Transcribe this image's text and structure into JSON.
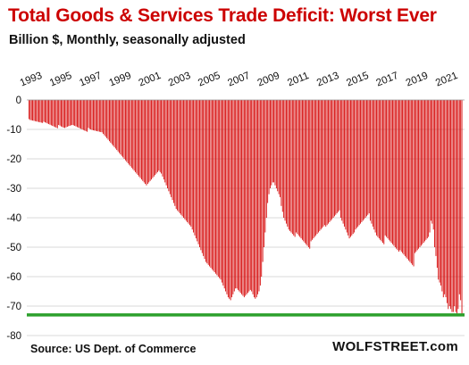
{
  "title": "Total Goods & Services Trade Deficit: Worst Ever",
  "subtitle": "Billion $, Monthly, seasonally adjusted",
  "source": "Source: US Dept. of Commerce",
  "brand": "WOLFSTREET.com",
  "colors": {
    "title": "#cc0000",
    "bars": "#d40000",
    "reference_line": "#2ca02c",
    "grid": "#d9d9d9",
    "text": "#111111"
  },
  "chart_data": {
    "type": "bar",
    "title": "Total Goods & Services Trade Deficit: Worst Ever",
    "subtitle": "Billion $, Monthly, seasonally adjusted",
    "xlabel": "",
    "ylabel": "",
    "x_tick_labels": [
      "1993",
      "1995",
      "1997",
      "1999",
      "2001",
      "2003",
      "2005",
      "2007",
      "2009",
      "2011",
      "2013",
      "2015",
      "2017",
      "2019",
      "2021"
    ],
    "y_tick_labels": [
      "0",
      "-10",
      "-20",
      "-30",
      "-40",
      "-50",
      "-60",
      "-70",
      "-80"
    ],
    "ylim": [
      -80,
      0
    ],
    "grid": "horizontal",
    "frequency": "monthly",
    "series": [
      {
        "annual_values": [
          {
            "year": 1993,
            "months": [
              -6.5,
              -6.8,
              -6.9,
              -7.0,
              -7.1,
              -7.2,
              -7.3,
              -7.4,
              -7.5,
              -7.6,
              -7.7,
              -7.8
            ]
          },
          {
            "year": 1994,
            "months": [
              -7.4,
              -7.6,
              -7.8,
              -8.0,
              -8.2,
              -8.4,
              -8.6,
              -8.8,
              -9.0,
              -9.2,
              -9.4,
              -9.6
            ]
          },
          {
            "year": 1995,
            "months": [
              -8.5,
              -8.7,
              -9.0,
              -9.2,
              -9.4,
              -9.5,
              -9.3,
              -9.1,
              -8.9,
              -8.8,
              -8.6,
              -8.5
            ]
          },
          {
            "year": 1996,
            "months": [
              -8.6,
              -8.8,
              -9.0,
              -9.2,
              -9.4,
              -9.6,
              -9.8,
              -10.0,
              -10.2,
              -10.4,
              -10.6,
              -10.8
            ]
          },
          {
            "year": 1997,
            "months": [
              -9.5,
              -9.8,
              -10.0,
              -10.2,
              -10.3,
              -10.4,
              -10.5,
              -10.6,
              -10.7,
              -10.8,
              -10.9,
              -11.0
            ]
          },
          {
            "year": 1998,
            "months": [
              -11.5,
              -12.0,
              -12.5,
              -13.0,
              -13.5,
              -14.0,
              -14.5,
              -15.0,
              -15.5,
              -16.0,
              -16.5,
              -17.0
            ]
          },
          {
            "year": 1999,
            "months": [
              -17.5,
              -18.0,
              -18.5,
              -19.0,
              -19.5,
              -20.0,
              -20.5,
              -21.0,
              -21.5,
              -22.0,
              -22.5,
              -23.0
            ]
          },
          {
            "year": 2000,
            "months": [
              -23.5,
              -24.0,
              -24.5,
              -25.0,
              -25.5,
              -26.0,
              -26.5,
              -27.0,
              -27.5,
              -28.0,
              -28.5,
              -29.0
            ]
          },
          {
            "year": 2001,
            "months": [
              -28.5,
              -28.0,
              -27.5,
              -27.0,
              -26.5,
              -26.0,
              -25.5,
              -25.0,
              -24.5,
              -24.0,
              -24.5,
              -25.0
            ]
          },
          {
            "year": 2002,
            "months": [
              -26.0,
              -27.0,
              -28.0,
              -29.0,
              -30.0,
              -31.0,
              -32.0,
              -33.0,
              -34.0,
              -35.0,
              -36.0,
              -37.0
            ]
          },
          {
            "year": 2003,
            "months": [
              -37.5,
              -38.0,
              -38.5,
              -39.0,
              -39.5,
              -40.0,
              -40.5,
              -41.0,
              -41.5,
              -42.0,
              -42.5,
              -43.0
            ]
          },
          {
            "year": 2004,
            "months": [
              -44.0,
              -45.0,
              -46.0,
              -47.0,
              -48.0,
              -49.0,
              -50.0,
              -51.0,
              -52.0,
              -53.0,
              -54.0,
              -55.0
            ]
          },
          {
            "year": 2005,
            "months": [
              -55.5,
              -56.0,
              -56.5,
              -57.0,
              -57.5,
              -58.0,
              -58.5,
              -59.0,
              -59.5,
              -60.0,
              -60.5,
              -61.0
            ]
          },
          {
            "year": 2006,
            "months": [
              -62.0,
              -63.0,
              -64.0,
              -65.0,
              -66.0,
              -67.0,
              -67.5,
              -68.0,
              -67.0,
              -66.0,
              -65.0,
              -64.0
            ]
          },
          {
            "year": 2007,
            "months": [
              -64.0,
              -64.5,
              -65.0,
              -65.5,
              -66.0,
              -66.5,
              -67.0,
              -66.5,
              -66.0,
              -65.5,
              -65.0,
              -64.5
            ]
          },
          {
            "year": 2008,
            "months": [
              -65.0,
              -66.0,
              -67.0,
              -67.5,
              -67.0,
              -66.0,
              -65.0,
              -63.0,
              -60.0,
              -55.0,
              -50.0,
              -45.0
            ]
          },
          {
            "year": 2009,
            "months": [
              -40.0,
              -35.0,
              -32.0,
              -30.0,
              -29.0,
              -28.0,
              -28.0,
              -29.0,
              -30.0,
              -31.0,
              -32.0,
              -33.0
            ]
          },
          {
            "year": 2010,
            "months": [
              -36.0,
              -38.0,
              -40.0,
              -41.0,
              -42.0,
              -43.0,
              -44.0,
              -44.5,
              -45.0,
              -45.5,
              -46.0,
              -46.5
            ]
          },
          {
            "year": 2011,
            "months": [
              -45.0,
              -45.5,
              -46.0,
              -46.5,
              -47.0,
              -47.5,
              -48.0,
              -48.5,
              -49.0,
              -49.5,
              -50.0,
              -50.5
            ]
          },
          {
            "year": 2012,
            "months": [
              -48.0,
              -47.5,
              -47.0,
              -46.5,
              -46.0,
              -45.5,
              -45.0,
              -44.5,
              -44.0,
              -43.5,
              -43.0,
              -42.5
            ]
          },
          {
            "year": 2013,
            "months": [
              -43.0,
              -42.5,
              -42.0,
              -41.5,
              -41.0,
              -40.5,
              -40.0,
              -39.5,
              -39.0,
              -38.5,
              -38.0,
              -37.5
            ]
          },
          {
            "year": 2014,
            "months": [
              -40.0,
              -41.0,
              -42.0,
              -43.0,
              -44.0,
              -45.0,
              -46.0,
              -47.0,
              -46.5,
              -46.0,
              -45.5,
              -45.0
            ]
          },
          {
            "year": 2015,
            "months": [
              -44.0,
              -43.5,
              -43.0,
              -42.5,
              -42.0,
              -41.5,
              -41.0,
              -40.5,
              -40.0,
              -39.5,
              -39.0,
              -38.5
            ]
          },
          {
            "year": 2016,
            "months": [
              -41.0,
              -42.0,
              -43.0,
              -44.0,
              -45.0,
              -46.0,
              -46.5,
              -47.0,
              -47.5,
              -48.0,
              -48.5,
              -49.0
            ]
          },
          {
            "year": 2017,
            "months": [
              -46.0,
              -46.5,
              -47.0,
              -47.5,
              -48.0,
              -48.5,
              -49.0,
              -49.5,
              -50.0,
              -50.5,
              -51.0,
              -51.5
            ]
          },
          {
            "year": 2018,
            "months": [
              -51.0,
              -51.5,
              -52.0,
              -52.5,
              -53.0,
              -53.5,
              -54.0,
              -54.5,
              -55.0,
              -55.5,
              -56.0,
              -56.5
            ]
          },
          {
            "year": 2019,
            "months": [
              -52.0,
              -51.5,
              -51.0,
              -50.5,
              -50.0,
              -49.5,
              -49.0,
              -48.5,
              -48.0,
              -47.5,
              -47.0,
              -46.5
            ]
          },
          {
            "year": 2020,
            "months": [
              -45.0,
              -41.0,
              -42.0,
              -44.0,
              -50.0,
              -53.0,
              -57.0,
              -61.0,
              -62.0,
              -63.0,
              -65.0,
              -67.0
            ]
          },
          {
            "year": 2021,
            "months": [
              -66.0,
              -67.0,
              -69.0,
              -71.0,
              -70.0,
              -71.0,
              -72.0,
              -72.0,
              -70.0,
              -72.0,
              -72.5,
              -71.0
            ]
          },
          {
            "year": 2022,
            "months": [
              -66.0,
              -68.0,
              -73.0
            ]
          }
        ]
      }
    ],
    "reference_line": {
      "value": -73
    }
  }
}
